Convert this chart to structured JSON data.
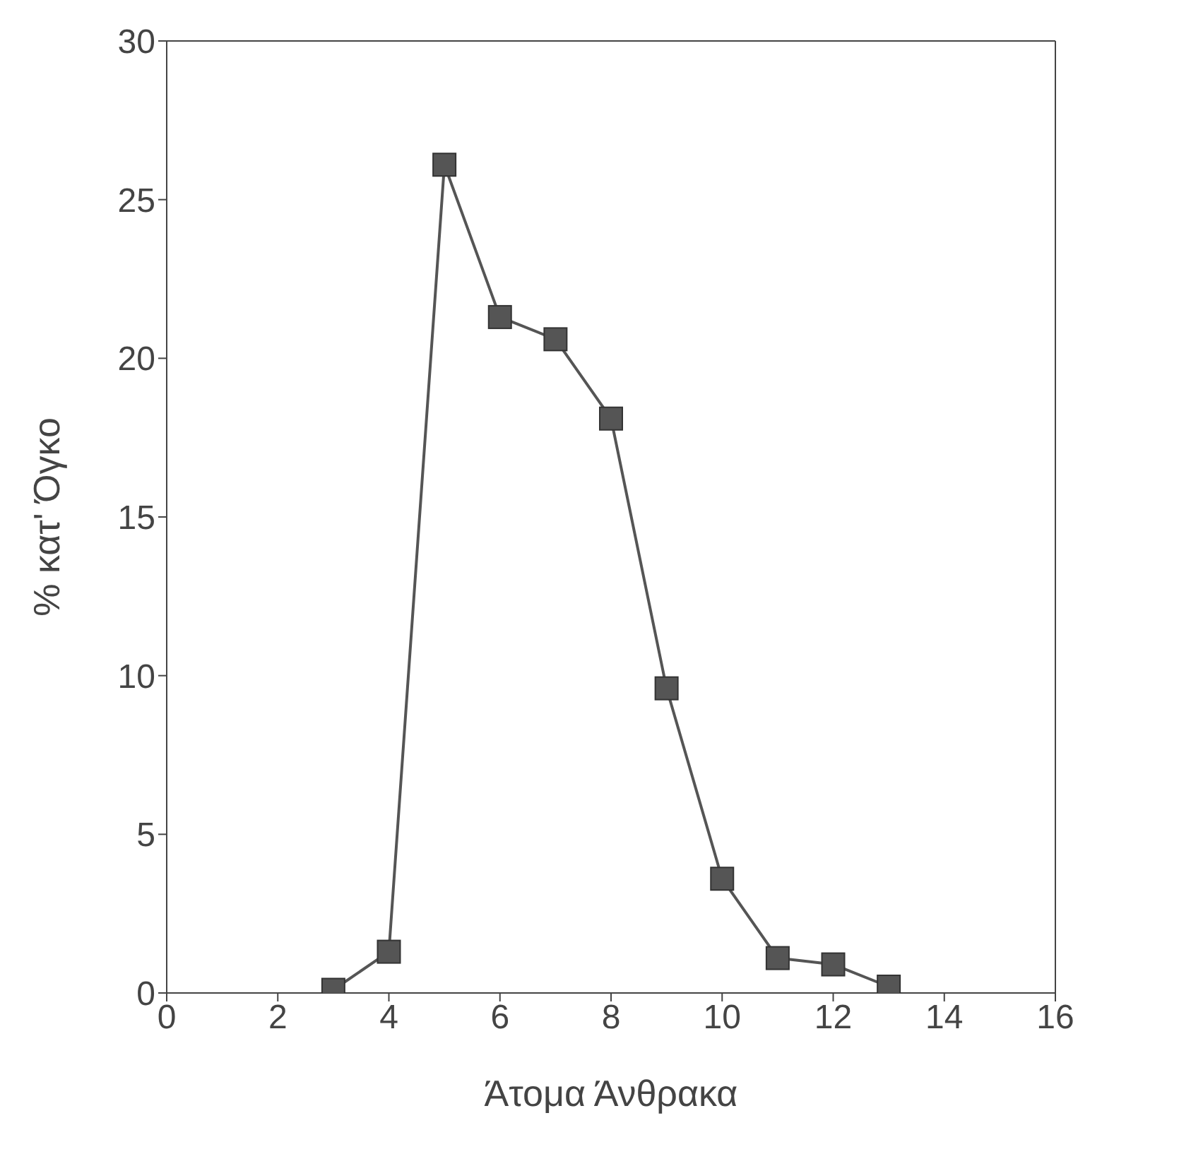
{
  "chart_data": {
    "type": "line",
    "xlabel": "Άτομα Άνθρακα",
    "ylabel": "% κατ' Όγκο",
    "x": [
      3,
      4,
      5,
      6,
      7,
      8,
      9,
      10,
      11,
      12,
      13
    ],
    "series": [
      {
        "color": "#555555",
        "values": [
          0.1,
          1.3,
          26.1,
          21.3,
          20.6,
          18.1,
          9.6,
          3.6,
          1.1,
          0.9,
          0.2
        ]
      }
    ],
    "xlim": [
      0,
      16
    ],
    "xticks": [
      0,
      2,
      4,
      6,
      8,
      10,
      12,
      14,
      16
    ],
    "ylim": [
      0,
      30
    ],
    "yticks": [
      0,
      5,
      10,
      15,
      20,
      25,
      30
    ],
    "marker": "square",
    "grid": false,
    "legend": false
  }
}
